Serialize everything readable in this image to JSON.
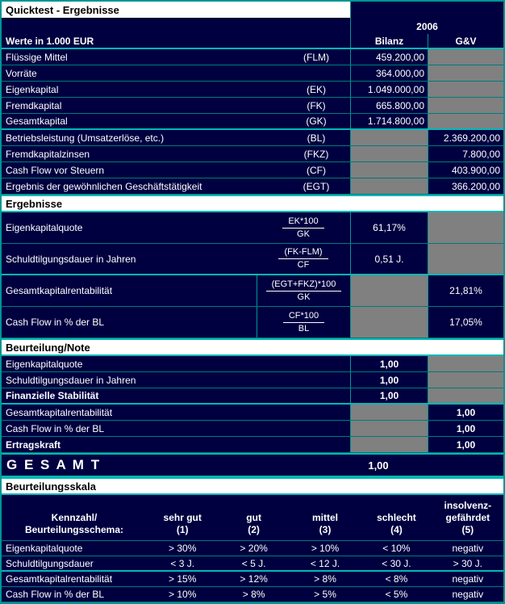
{
  "title": "Quicktest - Ergebnisse",
  "year": "2006",
  "columns": {
    "werte": "Werte in 1.000 EUR",
    "bilanz": "Bilanz",
    "gv": "G&V"
  },
  "values": {
    "rows": [
      {
        "label": "Flüssige Mittel",
        "code": "(FLM)",
        "bilanz": "459.200,00"
      },
      {
        "label": "Vorräte",
        "code": "",
        "bilanz": "364.000,00"
      },
      {
        "label": "Eigenkapital",
        "code": "(EK)",
        "bilanz": "1.049.000,00"
      },
      {
        "label": "Fremdkapital",
        "code": "(FK)",
        "bilanz": "665.800,00"
      },
      {
        "label": "Gesamtkapital",
        "code": "(GK)",
        "bilanz": "1.714.800,00"
      },
      {
        "label": "Betriebsleistung (Umsatzerlöse, etc.)",
        "code": "(BL)",
        "gv": "2.369.200,00"
      },
      {
        "label": "Fremdkapitalzinsen",
        "code": "(FKZ)",
        "gv": "7.800,00"
      },
      {
        "label": "Cash Flow vor Steuern",
        "code": "(CF)",
        "gv": "403.900,00"
      },
      {
        "label": "Ergebnis der gewöhnlichen Geschäftstätigkeit",
        "code": "(EGT)",
        "gv": "366.200,00"
      }
    ]
  },
  "ergebnisse": {
    "section_title": "Ergebnisse",
    "rows": [
      {
        "label": "Eigenkapitalquote",
        "numerator": "EK*100",
        "denominator": "GK",
        "bilanz": "61,17%"
      },
      {
        "label": "Schuldtilgungsdauer in Jahren",
        "numerator": "(FK-FLM)",
        "denominator": "CF",
        "bilanz": "0,51 J."
      },
      {
        "label": "Gesamtkapitalrentabilität",
        "numerator": "(EGT+FKZ)*100",
        "denominator": "GK",
        "gv": "21,81%"
      },
      {
        "label": "Cash Flow in % der BL",
        "numerator": "CF*100",
        "denominator": "BL",
        "gv": "17,05%"
      }
    ]
  },
  "beurteilung": {
    "section_title": "Beurteilung/Note",
    "rows": [
      {
        "label": "Eigenkapitalquote",
        "bilanz": "1,00"
      },
      {
        "label": "Schuldtilgungsdauer in Jahren",
        "bilanz": "1,00"
      },
      {
        "label": "Finanzielle Stabilität",
        "bilanz": "1,00"
      },
      {
        "label": "Gesamtkapitalrentabilität",
        "gv": "1,00"
      },
      {
        "label": "Cash Flow in % der BL",
        "gv": "1,00"
      },
      {
        "label": "Ertragskraft",
        "gv": "1,00"
      }
    ]
  },
  "gesamt": {
    "label": "G E S A M T",
    "value": "1,00"
  },
  "skala": {
    "section_title": "Beurteilungsskala",
    "header": {
      "kennzahl_line1": "Kennzahl/",
      "kennzahl_line2": "Beurteilungsschema:",
      "cols": [
        {
          "line1": "sehr gut",
          "line2": "(1)"
        },
        {
          "line1": "gut",
          "line2": "(2)"
        },
        {
          "line1": "mittel",
          "line2": "(3)"
        },
        {
          "line1": "schlecht",
          "line2": "(4)"
        },
        {
          "line1": "insolvenz-",
          "line2": "gefährdet",
          "line3": "(5)"
        }
      ]
    },
    "rows": [
      {
        "label": "Eigenkapitalquote",
        "c1": "> 30%",
        "c2": "> 20%",
        "c3": "> 10%",
        "c4": "< 10%",
        "c5": "negativ"
      },
      {
        "label": "Schuldtilgungsdauer",
        "c1": "< 3 J.",
        "c2": "< 5 J.",
        "c3": "< 12 J.",
        "c4": "< 30 J.",
        "c5": "> 30 J."
      },
      {
        "label": "Gesamtkapitalrentabilität",
        "c1": "> 15%",
        "c2": "> 12%",
        "c3": "> 8%",
        "c4": "< 8%",
        "c5": "negativ"
      },
      {
        "label": "Cash Flow in % der BL",
        "c1": "> 10%",
        "c2": "> 8%",
        "c3": "> 5%",
        "c4": "< 5%",
        "c5": "negativ"
      }
    ]
  }
}
